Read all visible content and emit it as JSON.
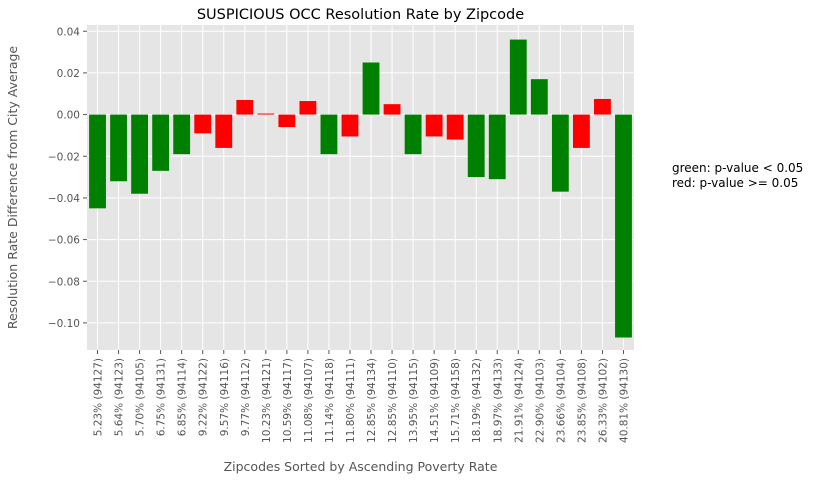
{
  "chart_data": {
    "type": "bar",
    "title": "SUSPICIOUS OCC Resolution Rate by Zipcode",
    "xlabel": "Zipcodes Sorted by Ascending Poverty Rate",
    "ylabel": "Resolution Rate Difference from City Average",
    "ylim": [
      -0.113,
      0.043
    ],
    "yticks": [
      0.04,
      0.02,
      0.0,
      -0.02,
      -0.04,
      -0.06,
      -0.08,
      -0.1
    ],
    "ytick_labels": [
      "0.04",
      "0.02",
      "0.00",
      "−0.02",
      "−0.04",
      "−0.06",
      "−0.08",
      "−0.10"
    ],
    "grid": true,
    "categories": [
      "5.23% (94127)",
      "5.64% (94123)",
      "5.70% (94105)",
      "6.75% (94131)",
      "6.85% (94114)",
      "9.22% (94122)",
      "9.57% (94116)",
      "9.77% (94112)",
      "10.23% (94121)",
      "10.59% (94117)",
      "11.08% (94107)",
      "11.14% (94118)",
      "11.80% (94111)",
      "12.85% (94134)",
      "12.85% (94110)",
      "13.95% (94115)",
      "14.51% (94109)",
      "15.71% (94158)",
      "18.19% (94132)",
      "18.97% (94133)",
      "21.91% (94124)",
      "22.90% (94103)",
      "23.66% (94104)",
      "23.85% (94108)",
      "26.33% (94102)",
      "40.81% (94130)"
    ],
    "values": [
      -0.045,
      -0.032,
      -0.038,
      -0.027,
      -0.019,
      -0.009,
      -0.016,
      0.007,
      0.0005,
      -0.006,
      0.0065,
      -0.019,
      -0.0105,
      0.025,
      0.005,
      -0.019,
      -0.0105,
      -0.012,
      -0.03,
      -0.031,
      0.036,
      0.017,
      -0.037,
      -0.016,
      0.0075,
      -0.107
    ],
    "significant": [
      true,
      true,
      true,
      true,
      true,
      false,
      false,
      false,
      false,
      false,
      false,
      true,
      false,
      true,
      false,
      true,
      false,
      false,
      true,
      true,
      true,
      true,
      true,
      false,
      false,
      true
    ],
    "colors": {
      "significant": "#008000",
      "not_significant": "#ff0000",
      "plot_bg": "#e5e5e5",
      "grid": "#ffffff",
      "tick_text": "#555555",
      "label_text": "#555555"
    }
  },
  "legend_note": {
    "line1": "green: p-value < 0.05",
    "line2": "red: p-value >= 0.05"
  }
}
